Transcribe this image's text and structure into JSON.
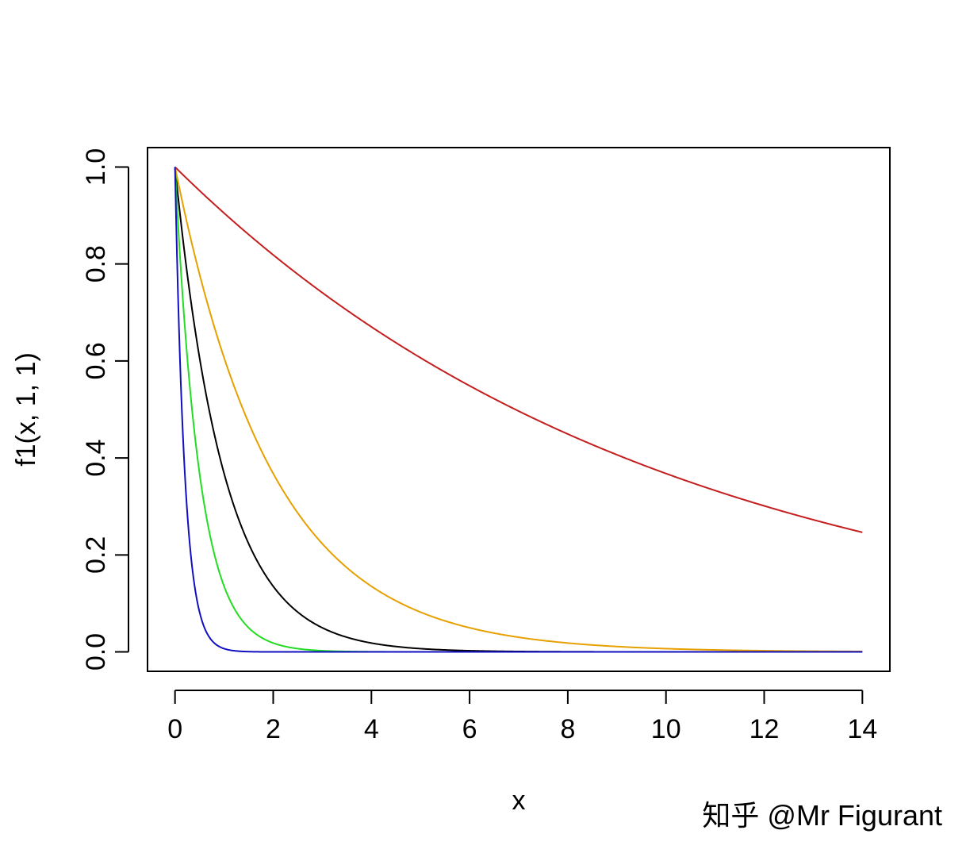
{
  "chart_data": {
    "type": "line",
    "title": "",
    "xlabel": "x",
    "ylabel": "f1(x, 1, 1)",
    "xlim": [
      -0.56,
      14.56
    ],
    "ylim": [
      -0.04,
      1.04
    ],
    "x_ticks": [
      0,
      2,
      4,
      6,
      8,
      10,
      12,
      14
    ],
    "y_ticks": [
      0.0,
      0.2,
      0.4,
      0.6,
      0.8,
      1.0
    ],
    "x_tick_labels": [
      "0",
      "2",
      "4",
      "6",
      "8",
      "10",
      "12",
      "14"
    ],
    "y_tick_labels": [
      "0.0",
      "0.2",
      "0.4",
      "0.6",
      "0.8",
      "1.0"
    ],
    "grid": false,
    "legend": "none",
    "x_range": [
      0,
      14
    ],
    "series": [
      {
        "color": "#000000",
        "rate": 1.0
      },
      {
        "color": "#e6a000",
        "rate": 0.5
      },
      {
        "color": "#c41e1e",
        "rate": 0.1
      },
      {
        "color": "#22dd22",
        "rate": 2.0
      },
      {
        "color": "#1010c0",
        "rate": 5.0
      }
    ]
  },
  "watermark": "知乎 @Mr Figurant"
}
